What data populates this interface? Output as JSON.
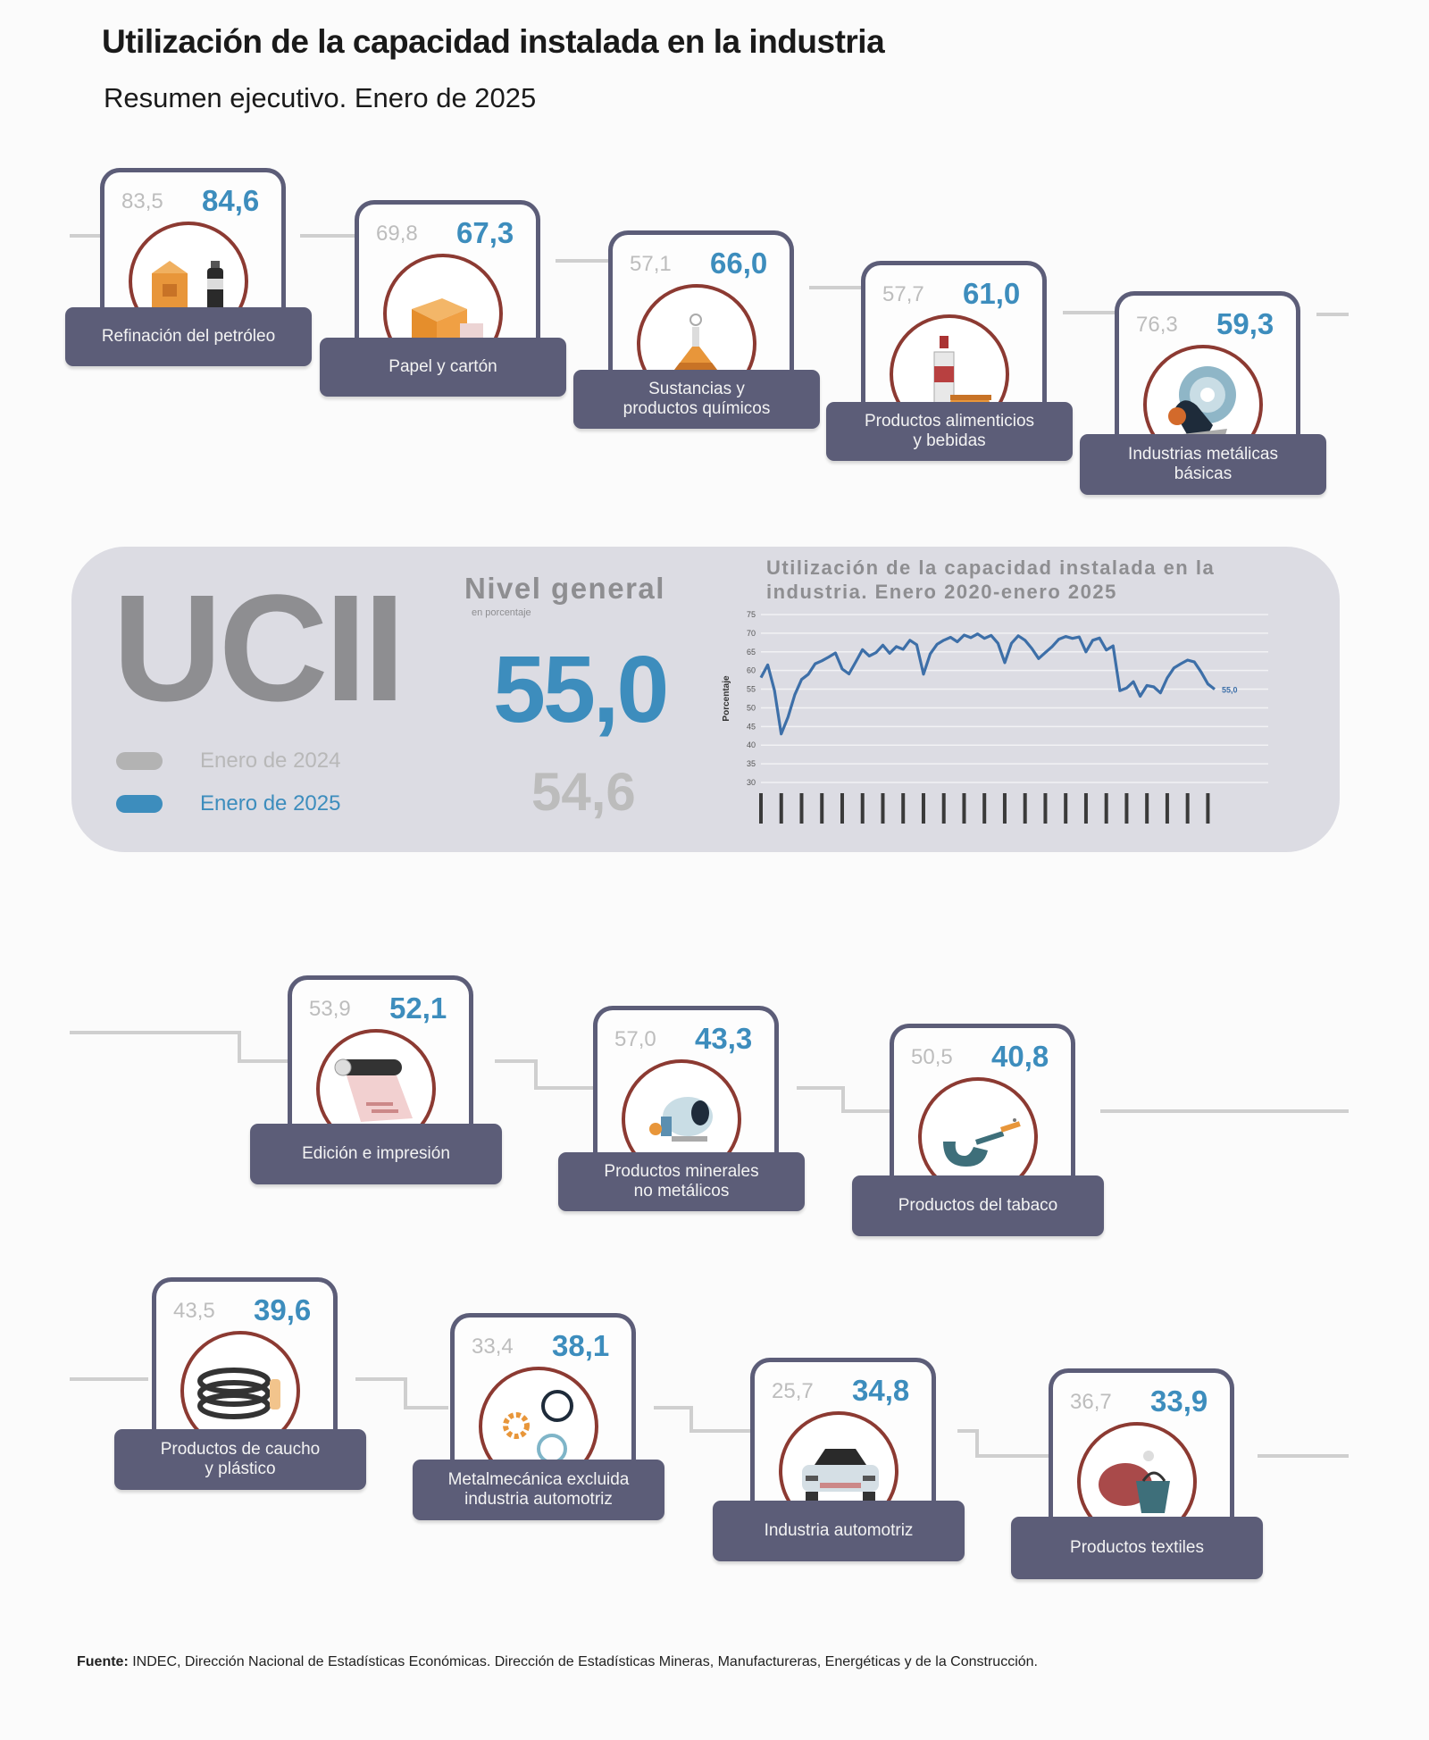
{
  "header": {
    "title": "Utilización de la capacidad instalada en la industria",
    "subtitle": "Resumen ejecutivo. Enero de 2025"
  },
  "colors": {
    "accent_blue": "#3d8dbd",
    "prev_gray": "#bdbdbd",
    "card_dark": "#5c5d78",
    "icon_ring": "#8c3a32",
    "panel_bg": "#dcdce3"
  },
  "sectors": [
    {
      "label": "Refinación del petróleo",
      "prev": "83,5",
      "curr": "84,6",
      "icon": "oil-refinery-icon"
    },
    {
      "label": "Papel y cartón",
      "prev": "69,8",
      "curr": "67,3",
      "icon": "cardboard-box-icon"
    },
    {
      "label": "Sustancias y\nproductos químicos",
      "prev": "57,1",
      "curr": "66,0",
      "icon": "chemical-flask-icon"
    },
    {
      "label": "Productos alimenticios\ny bebidas",
      "prev": "57,7",
      "curr": "61,0",
      "icon": "food-bottle-icon"
    },
    {
      "label": "Industrias metálicas\nbásicas",
      "prev": "76,3",
      "curr": "59,3",
      "icon": "steel-coil-icon"
    },
    {
      "label": "Edición e impresión",
      "prev": "53,9",
      "curr": "52,1",
      "icon": "printing-roll-icon"
    },
    {
      "label": "Productos minerales\nno metálicos",
      "prev": "57,0",
      "curr": "43,3",
      "icon": "cement-mixer-icon"
    },
    {
      "label": "Productos del tabaco",
      "prev": "50,5",
      "curr": "40,8",
      "icon": "tobacco-pipe-icon"
    },
    {
      "label": "Productos de caucho\ny plástico",
      "prev": "43,5",
      "curr": "39,6",
      "icon": "rubber-tires-icon"
    },
    {
      "label": "Metalmecánica excluida\nindustria automotriz",
      "prev": "33,4",
      "curr": "38,1",
      "icon": "gears-icon"
    },
    {
      "label": "Industria automotriz",
      "prev": "25,7",
      "curr": "34,8",
      "icon": "car-icon"
    },
    {
      "label": "Productos textiles",
      "prev": "36,7",
      "curr": "33,9",
      "icon": "textile-yarn-icon"
    }
  ],
  "ucii": {
    "acronym": "UCII",
    "legend": [
      {
        "label": "Enero de 2024",
        "color": "#b3b3b3"
      },
      {
        "label": "Enero de 2025",
        "color": "#3d8dbd"
      }
    ],
    "nivel_title": "Nivel general",
    "nivel_subtitle": "en porcentaje",
    "current": "55,0",
    "previous": "54,6"
  },
  "chart_data": {
    "type": "line",
    "title": "Utilización de la capacidad instalada en la industria. Enero 2020-enero 2025",
    "ylabel": "Porcentaje",
    "ylim": [
      30,
      75
    ],
    "yticks": [
      30,
      35,
      40,
      45,
      50,
      55,
      60,
      65,
      70,
      75
    ],
    "series": [
      {
        "color": "#3d6fa8",
        "values": [
          58.1,
          61.5,
          54.6,
          43.0,
          47.5,
          53.5,
          57.6,
          59.0,
          61.8,
          62.6,
          63.6,
          64.7,
          60.4,
          59.1,
          62.3,
          65.6,
          63.9,
          64.8,
          66.8,
          64.6,
          66.4,
          65.7,
          68.1,
          66.9,
          59.0,
          64.5,
          67.0,
          68.1,
          68.9,
          67.7,
          69.5,
          68.8,
          69.8,
          68.6,
          69.4,
          67.3,
          62.1,
          67.3,
          69.3,
          68.1,
          65.9,
          63.2,
          64.8,
          66.4,
          68.4,
          69.1,
          68.6,
          69.0,
          65.0,
          68.1,
          68.7,
          65.5,
          66.6,
          54.6,
          55.3,
          57.0,
          53.1,
          56.0,
          55.6,
          54.0,
          58.0,
          60.7,
          61.8,
          62.8,
          62.3,
          59.6,
          56.4,
          55.0
        ],
        "end_label": "55,0"
      }
    ]
  },
  "source": {
    "label": "Fuente:",
    "text": " INDEC, Dirección Nacional de Estadísticas Económicas. Dirección de Estadísticas Mineras, Manufactureras, Energéticas y de la Construcción."
  }
}
